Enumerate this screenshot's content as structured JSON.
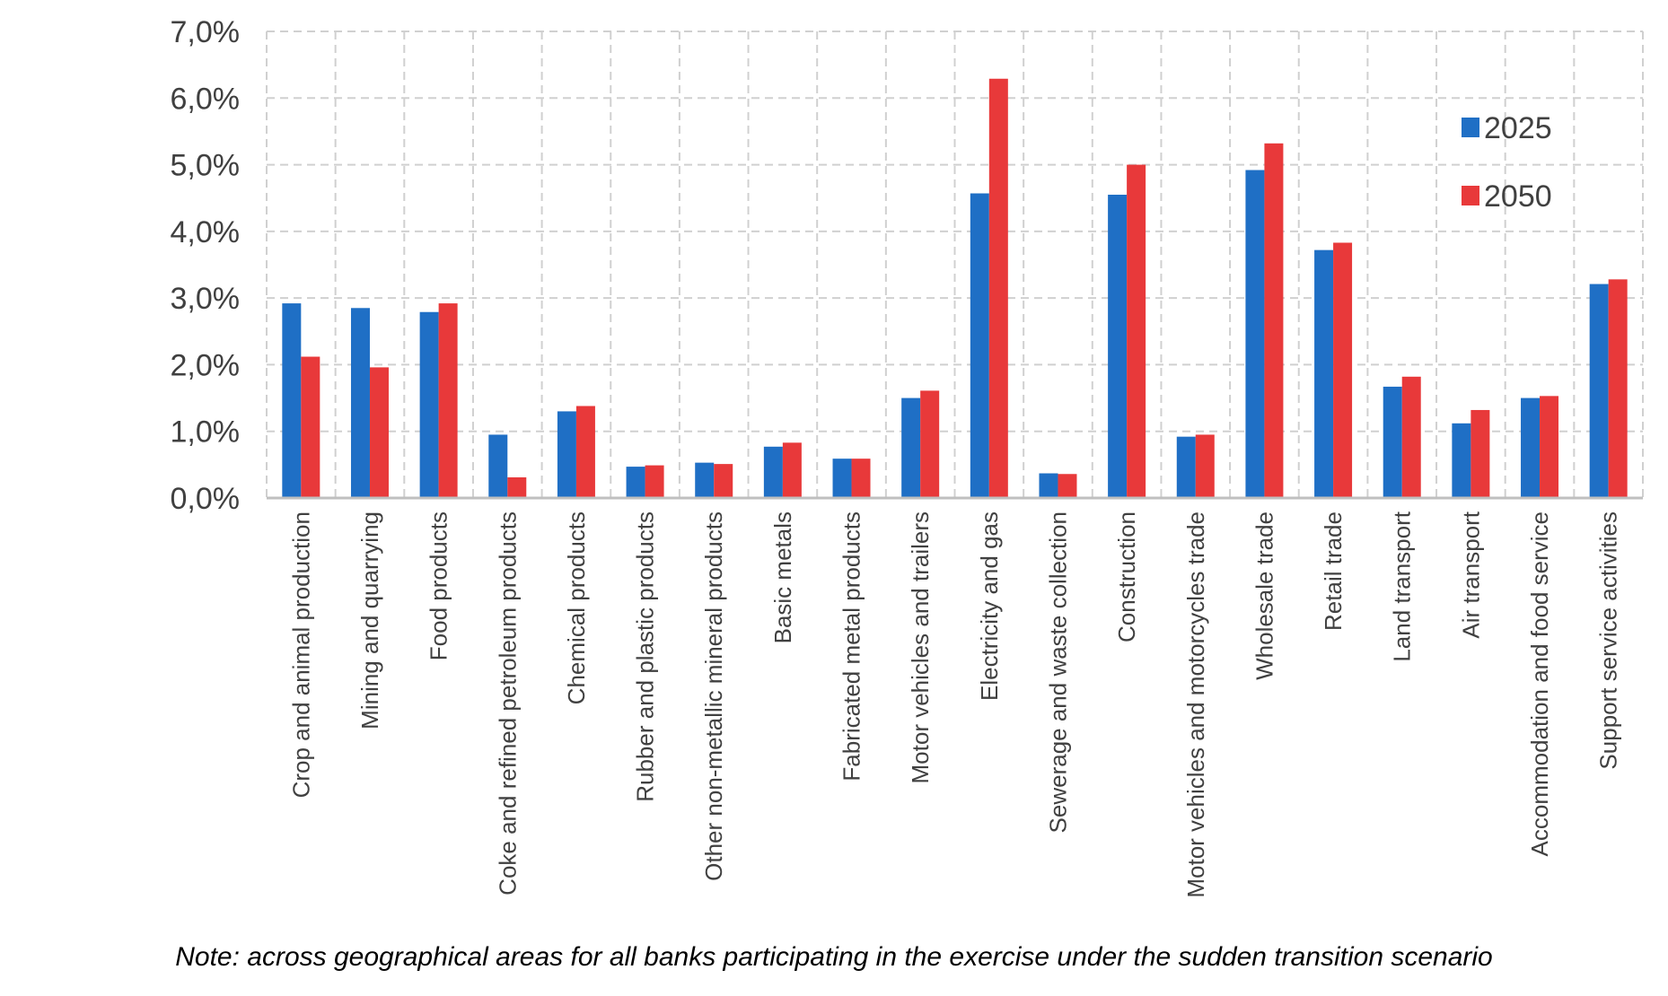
{
  "chart_data": {
    "type": "bar",
    "title": "",
    "xlabel": "",
    "ylabel": "",
    "ylim": [
      0,
      7
    ],
    "yticks": [
      "0,0%",
      "1,0%",
      "2,0%",
      "3,0%",
      "4,0%",
      "5,0%",
      "6,0%",
      "7,0%"
    ],
    "grid": true,
    "legend_position": "top-right",
    "categories": [
      "Crop and animal production",
      "Mining and quarrying",
      "Food products",
      "Coke and refined petroleum products",
      "Chemical products",
      "Rubber and plastic products",
      "Other non-metallic mineral products",
      "Basic metals",
      "Fabricated metal products",
      "Motor vehicles and trailers",
      "Electricity and gas",
      "Sewerage and waste collection",
      "Construction",
      "Motor vehicles and motorcycles trade",
      "Wholesale trade",
      "Retail trade",
      "Land transport",
      "Air transport",
      "Accommodation and food service",
      "Support service activities"
    ],
    "series": [
      {
        "name": "2025",
        "color": "#1f6fc5",
        "values": [
          2.92,
          2.85,
          2.79,
          0.95,
          1.3,
          0.47,
          0.53,
          0.77,
          0.59,
          1.5,
          4.57,
          0.37,
          4.55,
          0.92,
          4.92,
          3.72,
          1.67,
          1.12,
          1.5,
          3.21
        ]
      },
      {
        "name": "2050",
        "color": "#e8393a",
        "values": [
          2.12,
          1.96,
          2.92,
          0.31,
          1.38,
          0.49,
          0.51,
          0.83,
          0.59,
          1.61,
          6.29,
          0.36,
          5.0,
          0.95,
          5.32,
          3.83,
          1.82,
          1.32,
          1.53,
          3.28
        ]
      }
    ]
  },
  "note": "Note: across geographical areas for all banks participating in the exercise under the sudden transition scenario"
}
